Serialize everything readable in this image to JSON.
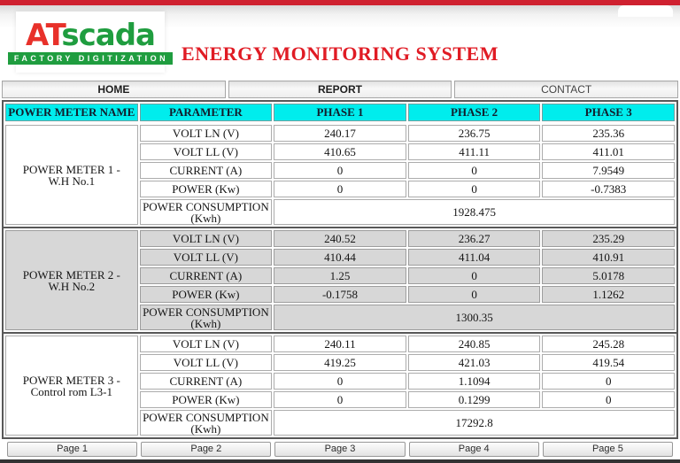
{
  "theme": {
    "top-bar": "#cf2130",
    "bottom-bar": "#333333",
    "title-red": "#e01b24",
    "logo-red": "#e8312a",
    "logo-green": "#1f9d3f",
    "header-cyan": "#00eded",
    "section-gray": "#d7d7d7"
  },
  "header": {
    "logo_text_1": "AT",
    "logo_text_2": "scada",
    "logo_tagline": "FACTORY DIGITIZATION",
    "title": "ENERGY MONITORING SYSTEM"
  },
  "nav": {
    "items": [
      {
        "label": "HOME"
      },
      {
        "label": "REPORT"
      },
      {
        "label": "CONTACT"
      }
    ]
  },
  "table": {
    "columns": [
      "POWER METER NAME",
      "PARAMETER",
      "PHASE 1",
      "PHASE 2",
      "PHASE 3"
    ],
    "meters": [
      {
        "name": "POWER METER 1 - W.H No.1",
        "rows": [
          {
            "parameter": "VOLT LN (V)",
            "values": [
              "240.17",
              "236.75",
              "235.36"
            ]
          },
          {
            "parameter": "VOLT LL (V)",
            "values": [
              "410.65",
              "411.11",
              "411.01"
            ]
          },
          {
            "parameter": "CURRENT (A)",
            "values": [
              "0",
              "0",
              "7.9549"
            ]
          },
          {
            "parameter": "POWER (Kw)",
            "values": [
              "0",
              "0",
              "-0.7383"
            ]
          }
        ],
        "consumption": {
          "parameter": "POWER CONSUMPTION (Kwh)",
          "value": "1928.475"
        }
      },
      {
        "name": "POWER METER 2 - W.H No.2",
        "rows": [
          {
            "parameter": "VOLT LN (V)",
            "values": [
              "240.52",
              "236.27",
              "235.29"
            ]
          },
          {
            "parameter": "VOLT LL (V)",
            "values": [
              "410.44",
              "411.04",
              "410.91"
            ]
          },
          {
            "parameter": "CURRENT (A)",
            "values": [
              "1.25",
              "0",
              "5.0178"
            ]
          },
          {
            "parameter": "POWER (Kw)",
            "values": [
              "-0.1758",
              "0",
              "1.1262"
            ]
          }
        ],
        "consumption": {
          "parameter": "POWER CONSUMPTION (Kwh)",
          "value": "1300.35"
        }
      },
      {
        "name": "POWER METER 3 - Control rom L3-1",
        "rows": [
          {
            "parameter": "VOLT LN (V)",
            "values": [
              "240.11",
              "240.85",
              "245.28"
            ]
          },
          {
            "parameter": "VOLT LL (V)",
            "values": [
              "419.25",
              "421.03",
              "419.54"
            ]
          },
          {
            "parameter": "CURRENT (A)",
            "values": [
              "0",
              "1.1094",
              "0"
            ]
          },
          {
            "parameter": "POWER (Kw)",
            "values": [
              "0",
              "0.1299",
              "0"
            ]
          }
        ],
        "consumption": {
          "parameter": "POWER CONSUMPTION (Kwh)",
          "value": "17292.8"
        }
      }
    ]
  },
  "pagination": {
    "pages": [
      "Page 1",
      "Page 2",
      "Page 3",
      "Page 4",
      "Page 5"
    ]
  }
}
